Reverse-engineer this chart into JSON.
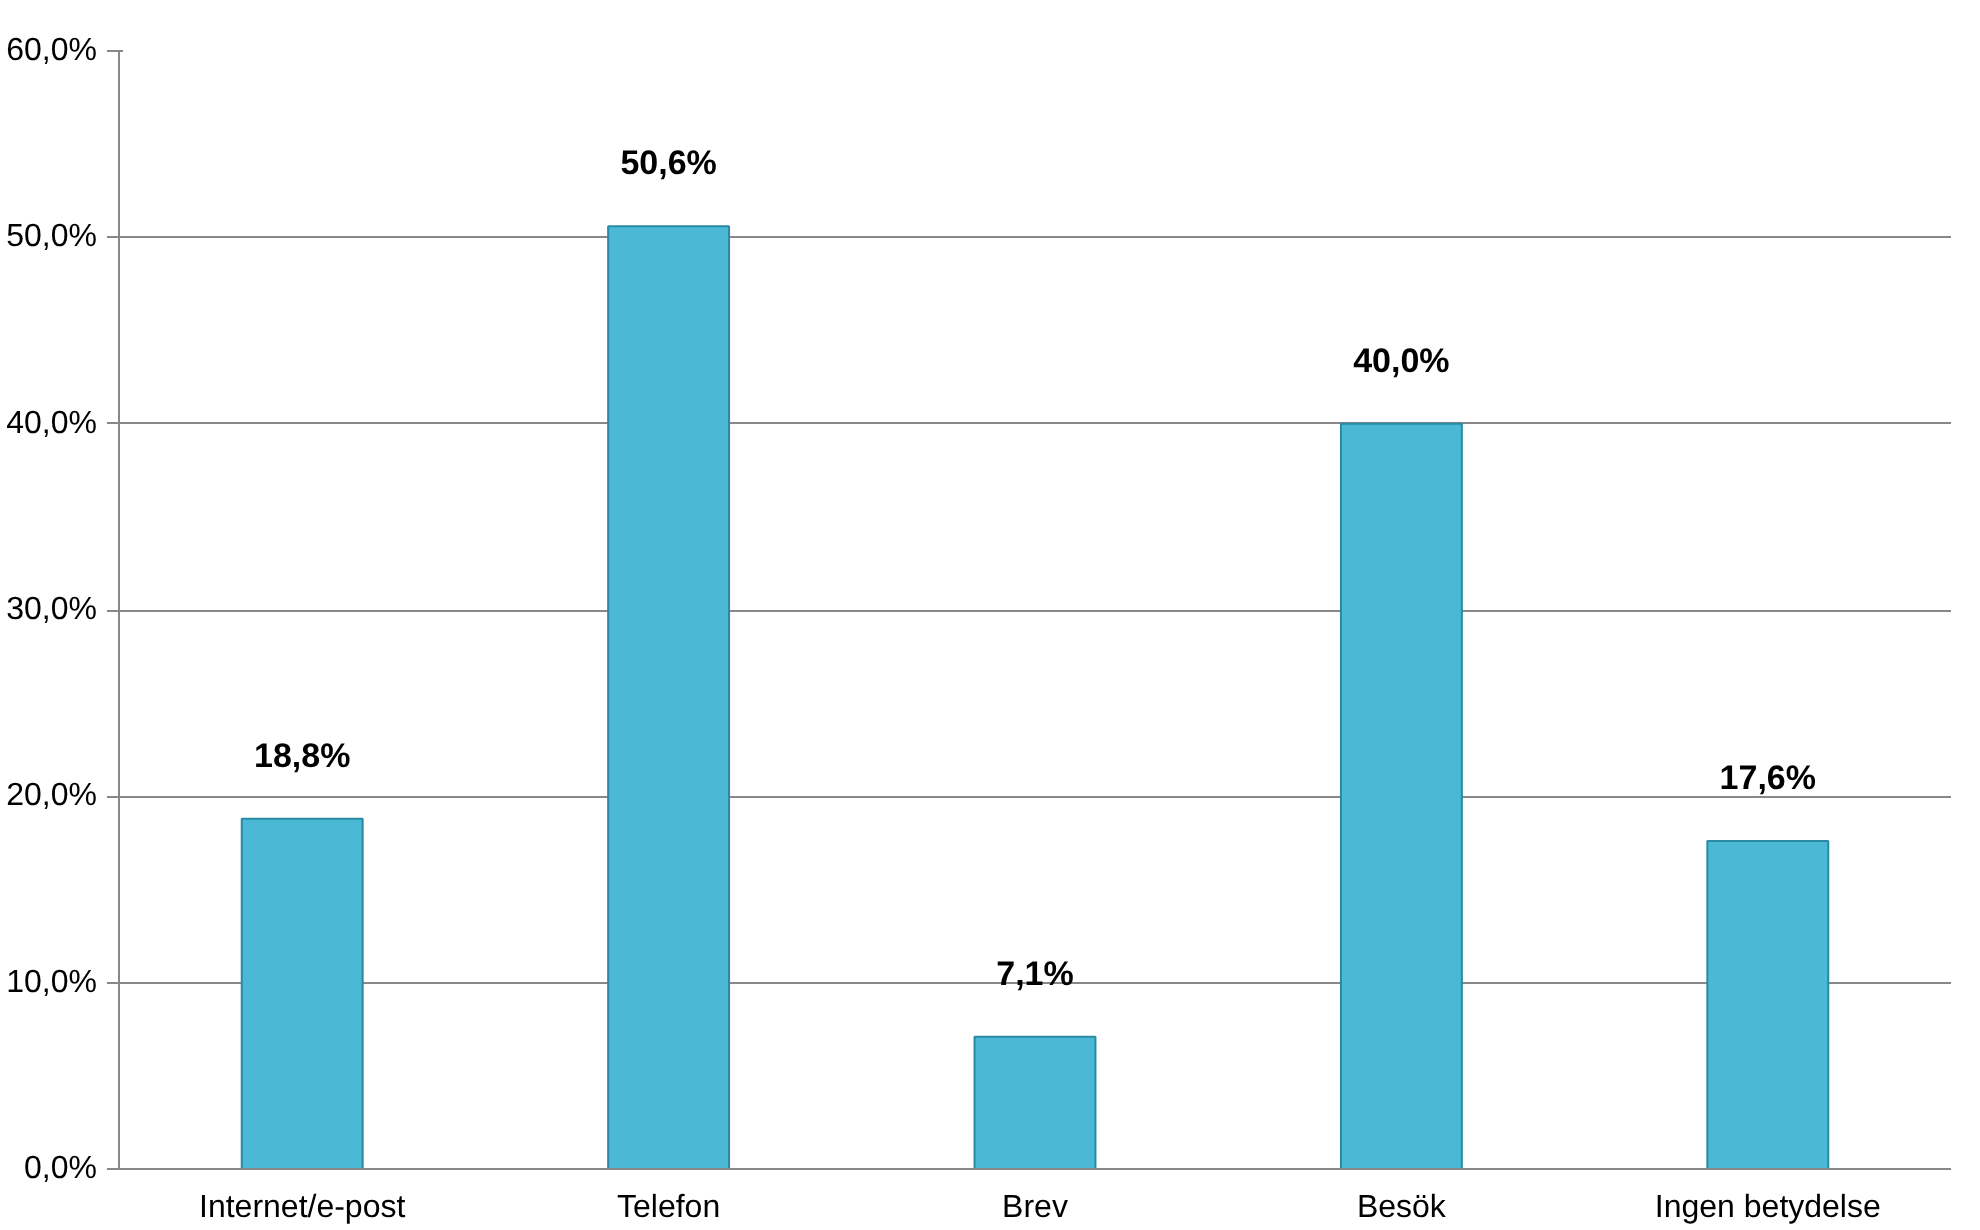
{
  "chart_data": {
    "type": "bar",
    "categories": [
      "Internet/e-post",
      "Telefon",
      "Brev",
      "Besök",
      "Ingen betydelse"
    ],
    "values": [
      18.8,
      50.6,
      7.1,
      40.0,
      17.6
    ],
    "value_labels": [
      "18,8%",
      "50,6%",
      "7,1%",
      "40,0%",
      "17,6%"
    ],
    "color": "#4bb9d5",
    "ylim": [
      0,
      60
    ],
    "yticks": [
      {
        "value": 0,
        "label": "0,0%"
      },
      {
        "value": 10,
        "label": "10,0%"
      },
      {
        "value": 20,
        "label": "20,0%"
      },
      {
        "value": 30,
        "label": "30,0%"
      },
      {
        "value": 40,
        "label": "40,0%"
      },
      {
        "value": 50,
        "label": "50,0%"
      },
      {
        "value": 60,
        "label": "60,0%"
      }
    ],
    "grid": "y"
  }
}
